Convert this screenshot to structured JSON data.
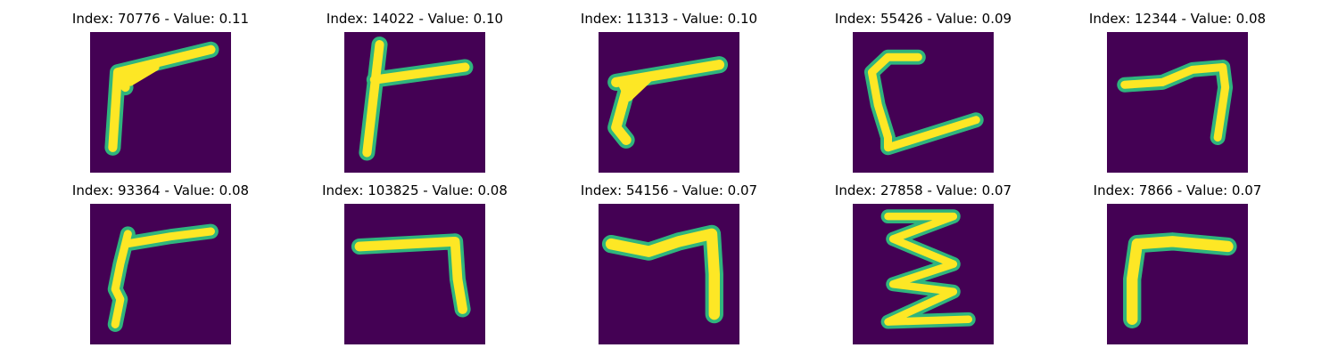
{
  "colors": {
    "background": "#440154",
    "halo": "#2fb57d",
    "stroke": "#fde725",
    "title_text": "#000000"
  },
  "panels": [
    {
      "index": "70776",
      "value": "0.11",
      "title": "Index: 70776 - Value: 0.11",
      "glyph": "r-shape"
    },
    {
      "index": "14022",
      "value": "0.10",
      "title": "Index: 14022 - Value: 0.10",
      "glyph": "t-shape"
    },
    {
      "index": "11313",
      "value": "0.10",
      "title": "Index: 11313 - Value: 0.10",
      "glyph": "r-shape"
    },
    {
      "index": "55426",
      "value": "0.09",
      "title": "Index: 55426 - Value: 0.09",
      "glyph": "c-shape"
    },
    {
      "index": "12344",
      "value": "0.08",
      "title": "Index: 12344 - Value: 0.08",
      "glyph": "seven-shape"
    },
    {
      "index": "93364",
      "value": "0.08",
      "title": "Index: 93364 - Value: 0.08",
      "glyph": "r-shape"
    },
    {
      "index": "103825",
      "value": "0.08",
      "title": "Index: 103825 - Value: 0.08",
      "glyph": "seven-shape"
    },
    {
      "index": "54156",
      "value": "0.07",
      "title": "Index: 54156 - Value: 0.07",
      "glyph": "seven-shape"
    },
    {
      "index": "27858",
      "value": "0.07",
      "title": "Index: 27858 - Value: 0.07",
      "glyph": "sigma-shape"
    },
    {
      "index": "7866",
      "value": "0.07",
      "title": "Index: 7866 - Value: 0.07",
      "glyph": "r-shape"
    }
  ]
}
